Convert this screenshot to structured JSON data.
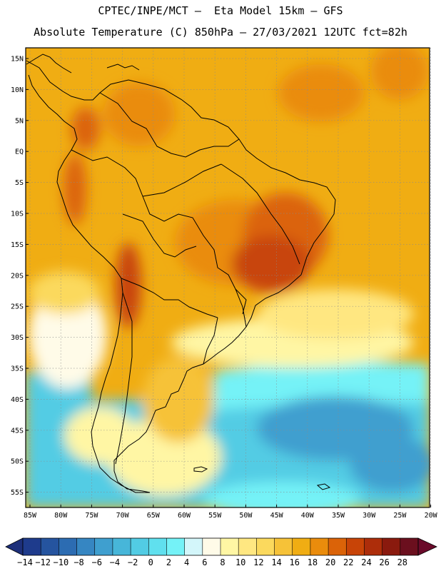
{
  "header": {
    "line1": "CPTEC/INPE/MCT –  Eta Model 15km – GFS",
    "line2": "Absolute Temperature (C) 850hPa – 27/03/2021 12UTC fct=82h"
  },
  "map": {
    "lat_labels": [
      "15N",
      "10N",
      "5N",
      "EQ",
      "5S",
      "10S",
      "15S",
      "20S",
      "25S",
      "30S",
      "35S",
      "40S",
      "45S",
      "50S",
      "55S"
    ],
    "lon_labels": [
      "85W",
      "80W",
      "75W",
      "70W",
      "65W",
      "60W",
      "55W",
      "50W",
      "45W",
      "40W",
      "35W",
      "30W",
      "25W",
      "20W"
    ]
  },
  "colorbar": {
    "labels": [
      "-14",
      "-12",
      "-10",
      "-8",
      "-6",
      "-4",
      "-2",
      "0",
      "2",
      "4",
      "6",
      "8",
      "10",
      "12",
      "14",
      "16",
      "18",
      "20",
      "22",
      "24",
      "26",
      "28"
    ],
    "colors": [
      "#1e3b8c",
      "#25549f",
      "#2c6cb2",
      "#3686c2",
      "#3f9fcf",
      "#47b6d9",
      "#52cce4",
      "#60e0ee",
      "#74f2f7",
      "#d3f6fa",
      "#fffbe8",
      "#fff6a4",
      "#ffe781",
      "#fbd95d",
      "#f6c238",
      "#f0ad13",
      "#ea8c0c",
      "#db6308",
      "#c84407",
      "#ad2d0a",
      "#8a1a0e",
      "#6b0f1e"
    ],
    "end_low_color": "#1d2f7a",
    "end_high_color": "#6a0a2a"
  }
}
